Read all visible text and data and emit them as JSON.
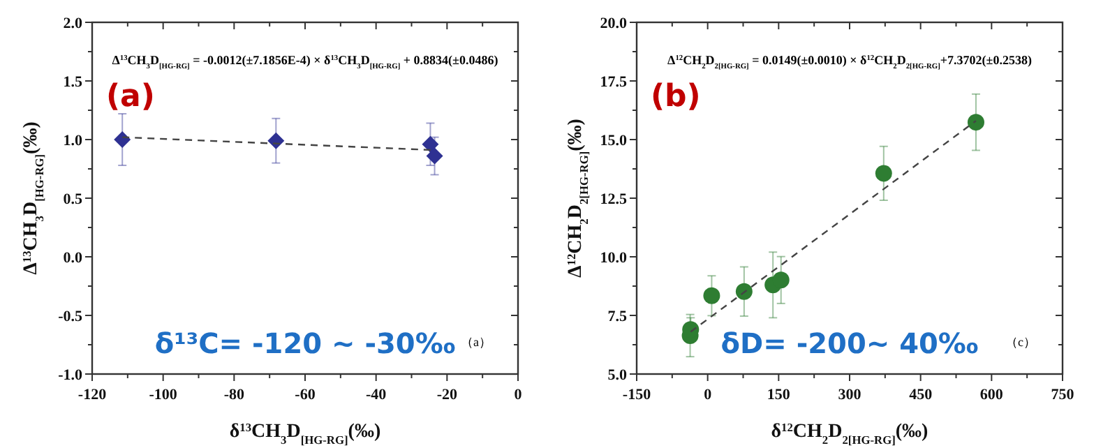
{
  "chart_data": [
    {
      "type": "scatter",
      "xlabel": "δ$^{13}$CH$_{3}$D$_{[HG-RG]}$(‰)",
      "ylabel": "Δ$^{13}$CH$_{3}$D$_{[HG-RG]}$(‰)",
      "xlim": [
        -120,
        0
      ],
      "ylim": [
        -1,
        2
      ],
      "xticks": [
        -120,
        {
          "value": -110,
          "label": null
        },
        -100,
        {
          "value": -90,
          "label": null
        },
        -80,
        {
          "value": -70,
          "label": null
        },
        -60,
        {
          "value": -50,
          "label": null
        },
        -40,
        {
          "value": -30,
          "label": null
        },
        -20,
        {
          "value": -10,
          "label": null
        },
        0
      ],
      "yticks": [
        {
          "value": -1,
          "label": "-1.0"
        },
        {
          "value": -0.75,
          "label": null
        },
        {
          "value": -0.5,
          "label": "-0.5"
        },
        {
          "value": -0.25,
          "label": null
        },
        {
          "value": 0,
          "label": "0.0"
        },
        {
          "value": 0.25,
          "label": null
        },
        {
          "value": 0.5,
          "label": "0.5"
        },
        {
          "value": 0.75,
          "label": null
        },
        {
          "value": 1,
          "label": "1.0"
        },
        {
          "value": 1.25,
          "label": null
        },
        {
          "value": 1.5,
          "label": "1.5"
        },
        {
          "value": 1.75,
          "label": null
        },
        {
          "value": 2,
          "label": "2.0"
        }
      ],
      "grid": false,
      "series": [
        {
          "type": "scatter",
          "color": "#2e3192",
          "marker": "diamond",
          "x": [
            -111.5,
            -68.2,
            -24.7,
            -23.5
          ],
          "values": [
            1.0,
            0.99,
            0.96,
            0.86
          ],
          "errors": [
            0.22,
            0.19,
            0.18,
            0.16
          ]
        },
        {
          "type": "line",
          "color": "#444444",
          "line_style": "dashed",
          "x": [
            -111.5,
            -23.5
          ],
          "values": [
            1.02,
            0.91
          ]
        }
      ],
      "annotations": [
        "(a)",
        "Δ$^{13}$CH$_{3}$D$_{[HG-RG]}$ = -0.0012(±7.1856E-4) × δ$^{13}$CH$_{3}$D$_{[HG-RG]}$ + 0.8834(±0.0486)",
        "δ¹³C= -120 ~ -30‰",
        "（a）"
      ]
    },
    {
      "type": "scatter",
      "xlabel": "δ$^{12}$CH$_{2}$D$_{2[HG-RG]}$(‰)",
      "ylabel": "Δ$^{12}$CH$_{2}$D$_{2[HG-RG]}$(‰)",
      "xlim": [
        -150,
        750
      ],
      "ylim": [
        5,
        20
      ],
      "xticks": [
        -150,
        {
          "value": -75,
          "label": null
        },
        0,
        {
          "value": 75,
          "label": null
        },
        150,
        {
          "value": 225,
          "label": null
        },
        300,
        {
          "value": 375,
          "label": null
        },
        450,
        {
          "value": 525,
          "label": null
        },
        600,
        {
          "value": 675,
          "label": null
        },
        750
      ],
      "yticks": [
        {
          "value": 5,
          "label": "5.0"
        },
        {
          "value": 6.25,
          "label": null
        },
        {
          "value": 7.5,
          "label": "7.5"
        },
        {
          "value": 8.75,
          "label": null
        },
        {
          "value": 10,
          "label": "10.0"
        },
        {
          "value": 11.25,
          "label": null
        },
        {
          "value": 12.5,
          "label": "12.5"
        },
        {
          "value": 13.75,
          "label": null
        },
        {
          "value": 15,
          "label": "15.0"
        },
        {
          "value": 16.25,
          "label": null
        },
        {
          "value": 17.5,
          "label": "17.5"
        },
        {
          "value": 18.75,
          "label": null
        },
        {
          "value": 20,
          "label": "20.0"
        }
      ],
      "grid": false,
      "series": [
        {
          "type": "scatter",
          "color": "#2e7d32",
          "marker": "circle",
          "x": [
            -37,
            -36,
            8.5,
            77,
            138,
            155,
            372,
            567
          ],
          "values": [
            6.64,
            6.9,
            8.34,
            8.52,
            8.8,
            9.01,
            13.56,
            15.74
          ],
          "errors": [
            0.9,
            0.5,
            0.85,
            1.05,
            1.4,
            1.0,
            1.15,
            1.2
          ]
        },
        {
          "type": "line",
          "color": "#444444",
          "line_style": "dashed",
          "x": [
            -36,
            567
          ],
          "values": [
            6.8,
            15.8
          ]
        }
      ],
      "annotations": [
        "(b)",
        "Δ$^{12}$CH$_{2}$D$_{2[HG-RG]}$ = 0.0149(±0.0010) × δ$^{12}$CH$_{2}$D$_{2[HG-RG]}$+7.3702(±0.2538)",
        "δD= -200~ 40‰",
        "（c）"
      ]
    }
  ]
}
